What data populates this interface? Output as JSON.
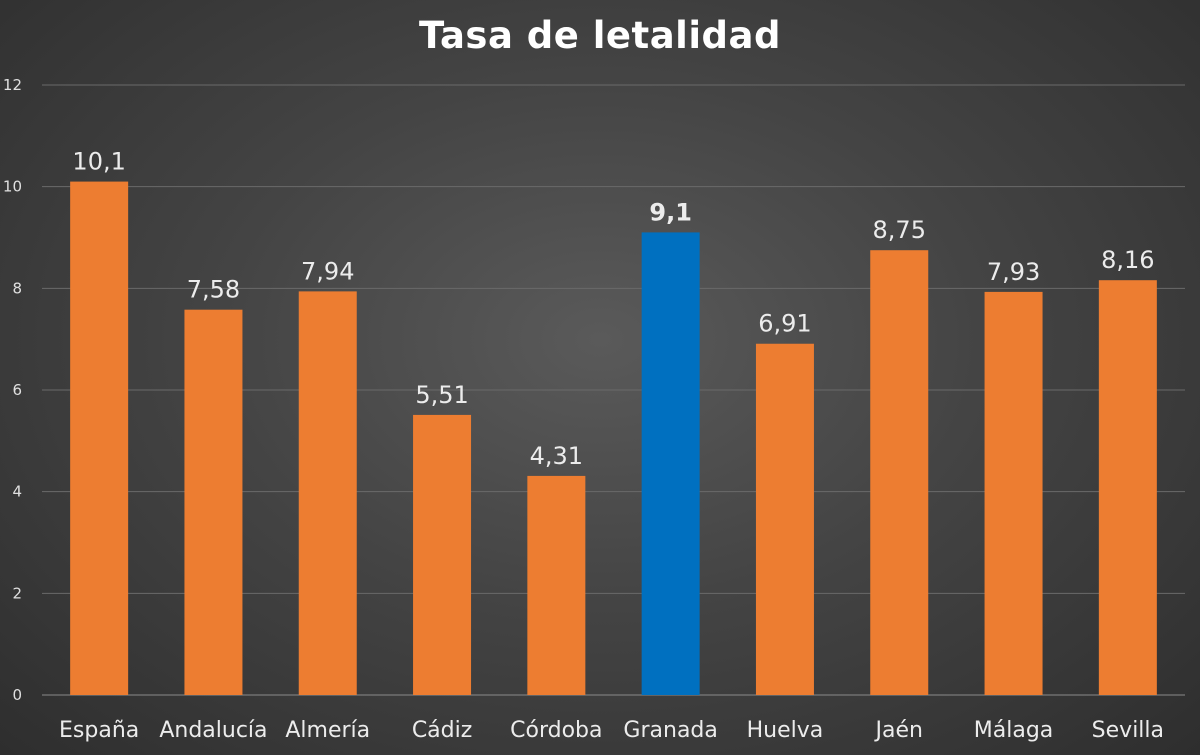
{
  "chart_data": {
    "type": "bar",
    "title": "Tasa de letalidad",
    "xlabel": "",
    "ylabel": "",
    "categories": [
      "España",
      "Andalucía",
      "Almería",
      "Cádiz",
      "Córdoba",
      "Granada",
      "Huelva",
      "Jaén",
      "Málaga",
      "Sevilla"
    ],
    "values": [
      10.1,
      7.58,
      7.94,
      5.51,
      4.31,
      9.1,
      6.91,
      8.75,
      7.93,
      8.16
    ],
    "value_labels": [
      "10,1",
      "7,58",
      "7,94",
      "5,51",
      "4,31",
      "9,1",
      "6,91",
      "8,75",
      "7,93",
      "8,16"
    ],
    "highlight_category": "Granada",
    "ylim": [
      0,
      12
    ],
    "y_ticks": [
      0,
      2,
      4,
      6,
      8,
      10,
      12
    ],
    "grid": true,
    "legend": "none",
    "colors": {
      "bar": "#ed7d31",
      "highlight": "#0070c0",
      "grid": "#6a6a6a",
      "background": "#444444",
      "text": "#ececec"
    }
  }
}
